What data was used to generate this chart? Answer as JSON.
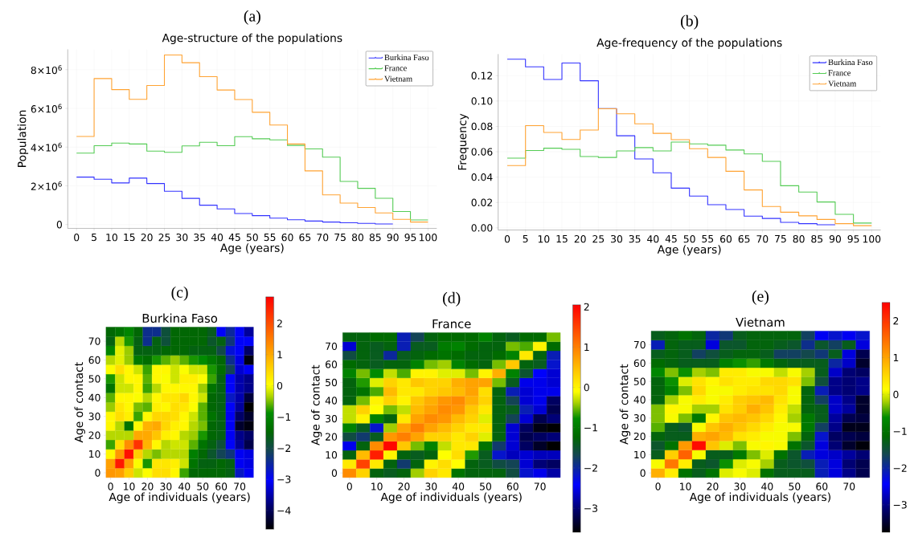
{
  "chart_data": [
    {
      "type": "step",
      "title": "Age-structure of the populations",
      "xlabel": "Age (years)",
      "ylabel": "Population",
      "annotations": [
        "(a)"
      ],
      "xlim": [
        -2.5,
        102.5
      ],
      "ylim": [
        -200000,
        9050000
      ],
      "xticks": [
        0,
        5,
        10,
        15,
        20,
        25,
        30,
        35,
        40,
        45,
        50,
        55,
        60,
        65,
        70,
        75,
        80,
        85,
        90,
        95,
        100
      ],
      "yticks": [
        0,
        {
          "value": 2000000,
          "label": "2×10$^{6}$"
        },
        {
          "value": 4000000,
          "label": "4×10$^{6}$"
        },
        {
          "value": 6000000,
          "label": "6×10$^{6}$"
        },
        {
          "value": 8000000,
          "label": "8×10$^{6}$"
        }
      ],
      "grid": true,
      "legend": "top right",
      "series": [
        {
          "name": "Burkina Faso",
          "color": "#3333ff",
          "x": [
            0,
            5,
            10,
            15,
            20,
            25,
            30,
            35,
            40,
            45,
            50,
            55,
            60,
            65,
            70,
            75,
            80,
            85,
            90
          ],
          "values": [
            2450000,
            2340000,
            2150000,
            2400000,
            2120000,
            1720000,
            1350000,
            1000000,
            810000,
            570000,
            460000,
            330000,
            250000,
            180000,
            130000,
            90000,
            60000,
            30000,
            30000
          ]
        },
        {
          "name": "France",
          "color": "#55cc55",
          "x": [
            0,
            5,
            10,
            15,
            20,
            25,
            30,
            35,
            40,
            45,
            50,
            55,
            60,
            65,
            70,
            75,
            80,
            85,
            90,
            95,
            100
          ],
          "values": [
            3690000,
            4070000,
            4210000,
            4160000,
            3790000,
            3730000,
            4060000,
            4250000,
            4070000,
            4540000,
            4430000,
            4370000,
            4090000,
            3910000,
            3480000,
            2230000,
            1870000,
            1360000,
            670000,
            240000,
            240000
          ]
        },
        {
          "name": "Vietnam",
          "color": "#ffa333",
          "x": [
            0,
            5,
            10,
            15,
            20,
            25,
            30,
            35,
            40,
            45,
            50,
            55,
            60,
            65,
            70,
            75,
            80,
            85,
            90,
            95,
            100
          ],
          "values": [
            4550000,
            7540000,
            6970000,
            6470000,
            7180000,
            8760000,
            8360000,
            7640000,
            6950000,
            6460000,
            5800000,
            5140000,
            4160000,
            2770000,
            1530000,
            1110000,
            880000,
            600000,
            270000,
            130000,
            130000
          ]
        }
      ]
    },
    {
      "type": "step",
      "title": "Age-frequency of the populations",
      "xlabel": "Age (years)",
      "ylabel": "Frequency",
      "annotations": [
        "(b)"
      ],
      "xlim": [
        -2.5,
        102.5
      ],
      "ylim": [
        -0.0017,
        0.137
      ],
      "xticks": [
        0,
        5,
        10,
        15,
        20,
        25,
        30,
        35,
        40,
        45,
        50,
        55,
        60,
        65,
        70,
        75,
        80,
        85,
        90,
        95,
        100
      ],
      "yticks": [
        {
          "value": 0,
          "label": "0.00"
        },
        {
          "value": 0.02,
          "label": "0.02"
        },
        {
          "value": 0.04,
          "label": "0.04"
        },
        {
          "value": 0.06,
          "label": "0.06"
        },
        {
          "value": 0.08,
          "label": "0.08"
        },
        {
          "value": 0.1,
          "label": "0.10"
        },
        {
          "value": 0.12,
          "label": "0.12"
        }
      ],
      "grid": true,
      "legend": "top right",
      "series": [
        {
          "name": "Burkina Faso",
          "color": "#3333ff",
          "x": [
            0,
            5,
            10,
            15,
            20,
            25,
            30,
            35,
            40,
            45,
            50,
            55,
            60,
            65,
            70,
            75,
            80,
            85,
            90
          ],
          "values": [
            0.133,
            0.127,
            0.117,
            0.13,
            0.116,
            0.094,
            0.0726,
            0.0543,
            0.0434,
            0.0313,
            0.0251,
            0.0183,
            0.0145,
            0.0092,
            0.0074,
            0.0043,
            0.0033,
            0.0024,
            0.0024
          ]
        },
        {
          "name": "France",
          "color": "#55cc55",
          "x": [
            0,
            5,
            10,
            15,
            20,
            25,
            30,
            35,
            40,
            45,
            50,
            55,
            60,
            65,
            70,
            75,
            80,
            85,
            90,
            95,
            100
          ],
          "values": [
            0.055,
            0.061,
            0.0628,
            0.0619,
            0.0562,
            0.0555,
            0.0607,
            0.0633,
            0.0607,
            0.0676,
            0.0662,
            0.0652,
            0.0614,
            0.0583,
            0.0524,
            0.0332,
            0.0282,
            0.0204,
            0.0107,
            0.0038,
            0.0038
          ]
        },
        {
          "name": "Vietnam",
          "color": "#ffa333",
          "x": [
            0,
            5,
            10,
            15,
            20,
            25,
            30,
            35,
            40,
            45,
            50,
            55,
            60,
            65,
            70,
            75,
            80,
            85,
            90,
            95,
            100
          ],
          "values": [
            0.0491,
            0.0806,
            0.0752,
            0.0697,
            0.0771,
            0.0939,
            0.0899,
            0.082,
            0.0745,
            0.0695,
            0.0624,
            0.0555,
            0.0446,
            0.0299,
            0.0168,
            0.0123,
            0.0095,
            0.0066,
            0.0033,
            0.0017,
            0.0017
          ]
        }
      ]
    },
    {
      "type": "heatmap",
      "title": "Burkina Faso",
      "xlabel": "Age of individuals (years)",
      "ylabel": "Age of contact",
      "annotations": [
        "(c)"
      ],
      "categories": [
        "0",
        null,
        "10",
        null,
        "20",
        null,
        "30",
        null,
        "40",
        null,
        "50",
        null,
        "60",
        null,
        "70",
        null
      ],
      "y_categories": [
        null,
        "70",
        null,
        "60",
        null,
        "50",
        null,
        "40",
        null,
        "30",
        null,
        "20",
        null,
        "10",
        null,
        "0"
      ],
      "clim": [
        -4.6,
        2.85
      ],
      "cticks": [
        {
          "value": -4,
          "label": "−4"
        },
        {
          "value": -3,
          "label": "−3"
        },
        {
          "value": -2,
          "label": "−2"
        },
        {
          "value": -1,
          "label": "−1"
        },
        0,
        1,
        2
      ],
      "cells": [
        [
          -1.5,
          -1.3,
          -1.0,
          -1.5,
          -2.4,
          -2.4,
          -1.9,
          -1.5,
          -1.5,
          -1.5,
          -1.5,
          -1.7,
          -3.0,
          -2.5,
          -3.0,
          -3.6
        ],
        [
          -1.6,
          -0.3,
          -0.8,
          -1.6,
          -2.4,
          -1.6,
          -1.9,
          -1.5,
          -1.5,
          -1.5,
          -1.5,
          -1.8,
          -1.6,
          -2.3,
          -3.0,
          -3.0
        ],
        [
          -1.0,
          -0.1,
          -0.4,
          -1.6,
          -1.6,
          -1.6,
          -1.5,
          -1.5,
          -1.5,
          -1.6,
          -1.6,
          -1.6,
          -2.0,
          -2.8,
          -3.0,
          -3.9
        ],
        [
          -0.3,
          -0.1,
          -0.4,
          -1.2,
          -1.4,
          -0.8,
          -0.6,
          -0.4,
          -0.6,
          -0.8,
          -0.9,
          -1.2,
          -1.5,
          -2.4,
          -3.2,
          -4.5
        ],
        [
          0,
          0.4,
          0.1,
          -0.2,
          -0.7,
          0.1,
          0.1,
          -0.2,
          0,
          -0.2,
          -0.2,
          -0.8,
          -1.4,
          -2.1,
          -3.3,
          -3.1
        ],
        [
          -0.8,
          -0.2,
          0.1,
          0.1,
          -0.6,
          0.1,
          0,
          -0.2,
          0.2,
          0.2,
          0,
          -0.7,
          -1.6,
          -3.0,
          -3.5,
          -3.7
        ],
        [
          -1.3,
          -0.2,
          -0.2,
          0.1,
          -0.7,
          -0.3,
          0.1,
          0.1,
          0.1,
          0.1,
          -0.4,
          -1.3,
          -1.6,
          -3.0,
          -3.5,
          -3.7
        ],
        [
          -0.6,
          0.1,
          0.1,
          0,
          -0.3,
          0.1,
          0.3,
          0.3,
          0.5,
          0.1,
          -0.2,
          -1.5,
          -1.6,
          -2.7,
          -3.5,
          -4.2
        ],
        [
          -0.4,
          0.3,
          0.1,
          -0.5,
          -0.6,
          0.2,
          0.1,
          0.4,
          0.3,
          0,
          -0.6,
          -1.5,
          -1.6,
          -3.0,
          -3.6,
          -4.6
        ],
        [
          0.1,
          0.4,
          0.2,
          -0.7,
          0.1,
          0.5,
          0.5,
          0.4,
          0.1,
          -0.2,
          -0.6,
          -1.3,
          -1.6,
          -3.1,
          -3.9,
          -4.3
        ],
        [
          0.1,
          -0.3,
          -1.3,
          0.1,
          0.9,
          1.0,
          0.5,
          0.2,
          0.1,
          -0.3,
          -0.5,
          -1.5,
          -1.6,
          -3.1,
          -4.3,
          -4.5
        ],
        [
          -0.3,
          -0.3,
          -0.3,
          1.0,
          1.0,
          0.7,
          0.2,
          0.1,
          -0.3,
          -0.4,
          -0.8,
          -1.5,
          -1.6,
          -3.1,
          -3.7,
          -3.9
        ],
        [
          -0.7,
          0.4,
          1.3,
          2.3,
          0.9,
          0.1,
          -0.3,
          -0.2,
          -0.2,
          -0.6,
          -1.3,
          -1.6,
          -1.9,
          -3.0,
          -3.6,
          -4.1
        ],
        [
          0.1,
          1.2,
          2.7,
          0.6,
          -0.3,
          -0.5,
          -0.3,
          -0.3,
          -0.3,
          -1.1,
          -1.5,
          -1.8,
          -2.1,
          -2.3,
          -3.1,
          -3.2
        ],
        [
          1.1,
          2.6,
          1.1,
          0,
          -0.8,
          0.3,
          0.3,
          0.2,
          -0.2,
          -1.3,
          -1.6,
          -1.6,
          -1.5,
          -1.6,
          -3.1,
          -3.2
        ],
        [
          1.2,
          1.1,
          0.6,
          -0.2,
          0,
          0.4,
          0.4,
          0.1,
          -0.7,
          -1.5,
          -1.5,
          -1.5,
          -1.5,
          -1.6,
          -2.7,
          -3.1
        ]
      ]
    },
    {
      "type": "heatmap",
      "title": "France",
      "xlabel": "Age of individuals (years)",
      "ylabel": "Age of contact",
      "annotations": [
        "(d)"
      ],
      "categories": [
        "0",
        null,
        "10",
        null,
        "20",
        null,
        "30",
        null,
        "40",
        null,
        "50",
        null,
        "60",
        null,
        "70",
        null
      ],
      "y_categories": [
        null,
        "70",
        null,
        "60",
        null,
        "50",
        null,
        "40",
        null,
        "30",
        null,
        "20",
        null,
        "10",
        null,
        "0"
      ],
      "clim": [
        -3.6,
        2.05
      ],
      "cticks": [
        {
          "value": -3,
          "label": "−3"
        },
        {
          "value": -2,
          "label": "−2"
        },
        {
          "value": -1,
          "label": "−1"
        },
        0,
        1,
        2
      ],
      "cells": [
        [
          -1.3,
          -1.3,
          -1.2,
          -1.2,
          -2.1,
          -1.7,
          -1.3,
          -1.2,
          -1.2,
          -1.2,
          -0.9,
          -1.3,
          -1.4,
          -1.2,
          -1.2,
          -0.5
        ],
        [
          -2.6,
          -1.3,
          -1.4,
          -1.3,
          -2.1,
          -1.4,
          -1.4,
          -1.0,
          -0.9,
          -1.2,
          -1.3,
          -1.3,
          -0.5,
          -0.6,
          0,
          -1.2
        ],
        [
          -1.6,
          -1.3,
          -1.4,
          -2.0,
          -1.4,
          -1.3,
          -1.2,
          -1.1,
          -1.2,
          -1.3,
          -1.3,
          -1.2,
          -0.9,
          0.1,
          -1.3,
          -2.1
        ],
        [
          -1.2,
          -1.3,
          -1.4,
          -1.3,
          -1.3,
          -0.9,
          -0.5,
          -0.4,
          -0.9,
          -1.2,
          -1.3,
          -0.5,
          0.4,
          -1.3,
          -1.4,
          -2.2
        ],
        [
          -0.9,
          -0.5,
          -0.8,
          -0.3,
          -0.6,
          0,
          0,
          -0.2,
          -0.2,
          -0.5,
          0,
          0.6,
          -0.9,
          -1.5,
          -2.4,
          -2.6
        ],
        [
          -1.3,
          -0.7,
          -0.2,
          0.3,
          0.1,
          0.4,
          0.3,
          0.3,
          0.6,
          0.7,
          0.7,
          -0.5,
          -1.4,
          -2.5,
          -2.5,
          -2.6
        ],
        [
          -1.3,
          -1.1,
          -0.6,
          0.5,
          0.1,
          0.1,
          0.3,
          0.4,
          0.5,
          0.7,
          0.2,
          -1.3,
          -2.1,
          -2.6,
          -2.5,
          -2.5
        ],
        [
          -1.3,
          -0.5,
          0,
          0.3,
          0,
          0.4,
          0.6,
          0.8,
          0.9,
          0.6,
          0.3,
          -1.3,
          -1.7,
          -2.6,
          -2.5,
          -3.1
        ],
        [
          -0.3,
          0.3,
          -0.1,
          -0.5,
          -0.3,
          0.5,
          0.7,
          0.9,
          0.8,
          0.4,
          0.1,
          -1.3,
          -1.4,
          -2.1,
          -2.6,
          -3.2
        ],
        [
          -0.3,
          0,
          -0.9,
          -1.3,
          0.1,
          0.7,
          0.9,
          0.8,
          0.5,
          0.3,
          -0.2,
          -1.3,
          -1.7,
          -2.6,
          -3.2,
          -3.0
        ],
        [
          -0.9,
          -1.4,
          -2.2,
          -0.4,
          0.7,
          1.0,
          0.7,
          0.5,
          0.3,
          0.1,
          0.1,
          -1.3,
          -2.6,
          -3.1,
          -3.5,
          -3.6
        ],
        [
          -1.6,
          -1.8,
          -1.4,
          0.8,
          1.0,
          0.7,
          0.3,
          0.3,
          0.1,
          0.3,
          -0.2,
          -1.3,
          -2.6,
          -3.2,
          -3.1,
          -3.0
        ],
        [
          -2.5,
          -1.3,
          0.9,
          2.0,
          0.4,
          -0.5,
          -0.9,
          -0.3,
          0.1,
          0.1,
          -1.1,
          -1.8,
          -2.6,
          -3.1,
          -3.4,
          -3.6
        ],
        [
          -1.3,
          0.5,
          1.8,
          0,
          -1.3,
          -1.4,
          -1.3,
          -0.1,
          0.2,
          -0.7,
          -1.4,
          -2.2,
          -2.7,
          -2.6,
          -2.7,
          -2.7
        ],
        [
          0.1,
          1.5,
          0.1,
          -1.3,
          -1.8,
          -1.3,
          0,
          0.2,
          -0.1,
          -1.3,
          -1.4,
          -1.6,
          -1.7,
          -2.6,
          -3.0,
          -3.1
        ],
        [
          0.9,
          0.3,
          -1.3,
          -1.4,
          -1.3,
          -0.4,
          0.3,
          0.1,
          -1.1,
          -1.3,
          -1.3,
          -1.3,
          -1.6,
          -2.2,
          -2.5,
          -2.8
        ]
      ]
    },
    {
      "type": "heatmap",
      "title": "Vietnam",
      "xlabel": "Age of individuals (years)",
      "ylabel": "Age of contact",
      "annotations": [
        "(e)"
      ],
      "categories": [
        "0",
        null,
        "10",
        null,
        "20",
        null,
        "30",
        null,
        "40",
        null,
        "50",
        null,
        "60",
        null,
        "70",
        null
      ],
      "y_categories": [
        null,
        "70",
        null,
        "60",
        null,
        "50",
        null,
        "40",
        null,
        "30",
        null,
        "20",
        null,
        "10",
        null,
        "0"
      ],
      "clim": [
        -3.75,
        2.5
      ],
      "cticks": [
        {
          "value": -3,
          "label": "−3"
        },
        {
          "value": -2,
          "label": "−2"
        },
        {
          "value": -1,
          "label": "−1"
        },
        0,
        1,
        2
      ],
      "cells": [
        [
          -1.3,
          -1.2,
          -1.0,
          -1.2,
          -2.0,
          -1.8,
          -1.3,
          -1.2,
          -1.2,
          -1.2,
          -1.2,
          -1.7,
          -2.5,
          -2.2,
          -2.5,
          -2.2
        ],
        [
          -2.1,
          -1.2,
          -1.3,
          -1.3,
          -2.6,
          -1.4,
          -1.4,
          -1.2,
          -1.2,
          -1.3,
          -1.4,
          -1.9,
          -1.4,
          -1.7,
          -1.3,
          -2.6
        ],
        [
          -1.3,
          -1.2,
          -1.3,
          -1.7,
          -1.5,
          -1.3,
          -1.2,
          -1.2,
          -1.3,
          -1.7,
          -1.7,
          -1.6,
          -1.8,
          -1.3,
          -2.6,
          -3.3
        ],
        [
          -1.1,
          -1.2,
          -1.3,
          -1.3,
          -1.3,
          -0.8,
          -0.6,
          -0.5,
          -0.9,
          -1.2,
          -1.3,
          -1.3,
          -1.3,
          -2.0,
          -2.7,
          -3.5
        ],
        [
          -0.7,
          -0.3,
          -0.6,
          -0.2,
          -0.3,
          0.3,
          0.3,
          0.1,
          0.1,
          -0.1,
          0.1,
          -0.2,
          -1.3,
          -2.7,
          -3.1,
          -3.2
        ],
        [
          -1.2,
          -0.6,
          0,
          0.4,
          0.2,
          0.4,
          0.3,
          0.3,
          0.5,
          0.5,
          0.4,
          -0.3,
          -1.5,
          -3.0,
          -3.1,
          -3.0
        ],
        [
          -1.2,
          -0.8,
          -0.3,
          0.5,
          0.1,
          0.1,
          0.3,
          0.4,
          0.4,
          0.5,
          0.1,
          -1.2,
          -2.1,
          -3.0,
          -3.1,
          -3.0
        ],
        [
          -1.2,
          -0.2,
          0.1,
          0.3,
          0.1,
          0.3,
          0.6,
          0.7,
          0.8,
          0.4,
          0.1,
          -1.2,
          -1.7,
          -2.7,
          -3.0,
          -3.5
        ],
        [
          -0.3,
          0.2,
          0.1,
          -0.2,
          -0.2,
          0.4,
          0.6,
          0.9,
          0.7,
          0.3,
          -0.1,
          -1.2,
          -1.3,
          -2.7,
          -2.9,
          -3.5
        ],
        [
          -0.3,
          0.1,
          -0.3,
          -0.9,
          0.2,
          0.7,
          0.8,
          0.7,
          0.5,
          0.2,
          -0.2,
          -0.9,
          -1.3,
          -2.9,
          -3.3,
          -3.4
        ],
        [
          -0.4,
          -1.3,
          -1.4,
          0.1,
          0.7,
          0.9,
          0.7,
          0.5,
          0.3,
          0.1,
          0.1,
          -0.9,
          -1.7,
          -3.0,
          -3.6,
          -3.6
        ],
        [
          -1.2,
          -1.3,
          -1.3,
          0.9,
          1.0,
          0.8,
          0.4,
          0.3,
          0.1,
          0.1,
          -0.3,
          -1.2,
          -2.2,
          -3.2,
          -3.3,
          -3.4
        ],
        [
          -1.4,
          -1.0,
          1.1,
          2.4,
          0.7,
          0,
          -0.3,
          0.1,
          0.2,
          0.1,
          -1.0,
          -1.4,
          -2.6,
          -3.1,
          -3.5,
          -3.7
        ],
        [
          -1.3,
          0.6,
          1.6,
          0.1,
          -1.3,
          -1.3,
          -0.9,
          -0.3,
          0,
          -1.0,
          -1.4,
          -2.1,
          -2.6,
          -2.7,
          -2.9,
          -3.1
        ],
        [
          0.1,
          1.4,
          0.3,
          -1.3,
          -1.4,
          -0.6,
          0,
          0.1,
          -0.2,
          -1.3,
          -1.4,
          -1.5,
          -2.1,
          -2.6,
          -3.1,
          -3.3
        ],
        [
          0.9,
          0.3,
          -1.0,
          -1.3,
          -1.0,
          0,
          0.1,
          0,
          -1.0,
          -1.3,
          -1.3,
          -1.3,
          -2.1,
          -2.6,
          -3.0,
          -3.3
        ]
      ]
    }
  ]
}
